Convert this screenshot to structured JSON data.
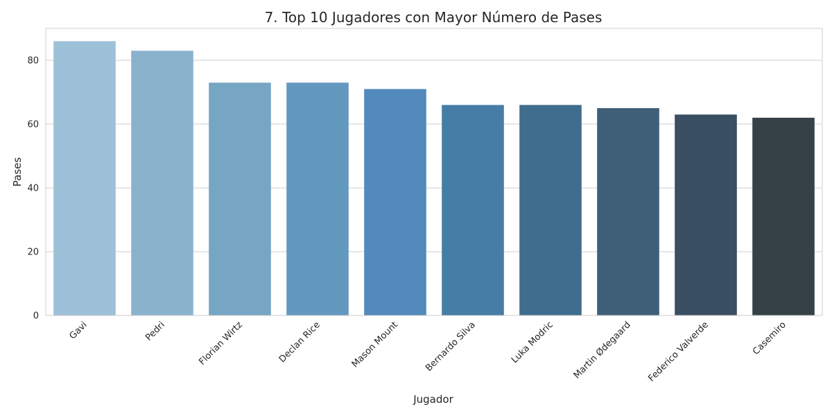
{
  "chart_data": {
    "type": "bar",
    "title": "7. Top 10 Jugadores con Mayor Número de Pases",
    "xlabel": "Jugador",
    "ylabel": "Pases",
    "categories": [
      "Gavi",
      "Pedri",
      "Florian Wirtz",
      "Declan Rice",
      "Mason Mount",
      "Bernardo Silva",
      "Luka Modric",
      "Martin Ødegaard",
      "Federico Valverde",
      "Casemiro"
    ],
    "values": [
      86,
      83,
      73,
      73,
      71,
      66,
      66,
      65,
      63,
      62
    ],
    "ylim": [
      0,
      90
    ],
    "yticks": [
      0,
      20,
      40,
      60,
      80
    ],
    "grid": "horizontal",
    "colors": [
      "#9dc1d8",
      "#8bb2cd",
      "#77a5c4",
      "#6399bf",
      "#528abb",
      "#467da6",
      "#406d8d",
      "#3e5f77",
      "#3a4f61",
      "#354147"
    ]
  }
}
